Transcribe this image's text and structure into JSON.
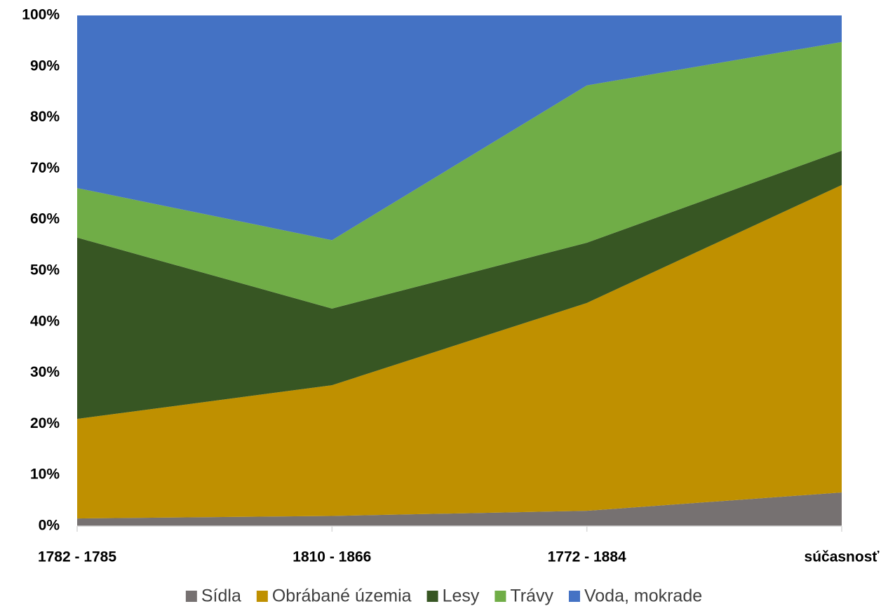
{
  "chart_data": {
    "type": "stacked_area",
    "categories": [
      "1782 - 1785",
      "1810 - 1866",
      "1772 - 1884",
      "súčasnosť"
    ],
    "series": [
      {
        "name": "Sídla",
        "color": "#767171",
        "values": [
          1.5,
          2,
          3,
          6.6
        ]
      },
      {
        "name": "Obrábané územia",
        "color": "#bf9000",
        "values": [
          19.5,
          25.6,
          40.7,
          60.2
        ]
      },
      {
        "name": "Lesy",
        "color": "#375623",
        "values": [
          35.5,
          15,
          11.8,
          6.7
        ]
      },
      {
        "name": "Trávy",
        "color": "#70ad47",
        "values": [
          9.7,
          13.4,
          30.8,
          21.3
        ]
      },
      {
        "name": "Voda, mokrade",
        "color": "#4472c4",
        "values": [
          33.8,
          44,
          13.7,
          5.2
        ]
      }
    ],
    "ylim": [
      0,
      100
    ],
    "yticks": [
      {
        "value": 0,
        "label": "0%"
      },
      {
        "value": 10,
        "label": "10%"
      },
      {
        "value": 20,
        "label": "20%"
      },
      {
        "value": 30,
        "label": "30%"
      },
      {
        "value": 40,
        "label": "40%"
      },
      {
        "value": 50,
        "label": "50%"
      },
      {
        "value": 60,
        "label": "60%"
      },
      {
        "value": 70,
        "label": "70%"
      },
      {
        "value": 80,
        "label": "80%"
      },
      {
        "value": 90,
        "label": "90%"
      },
      {
        "value": 100,
        "label": "100%"
      }
    ],
    "grid": false,
    "legend": "bottom"
  }
}
